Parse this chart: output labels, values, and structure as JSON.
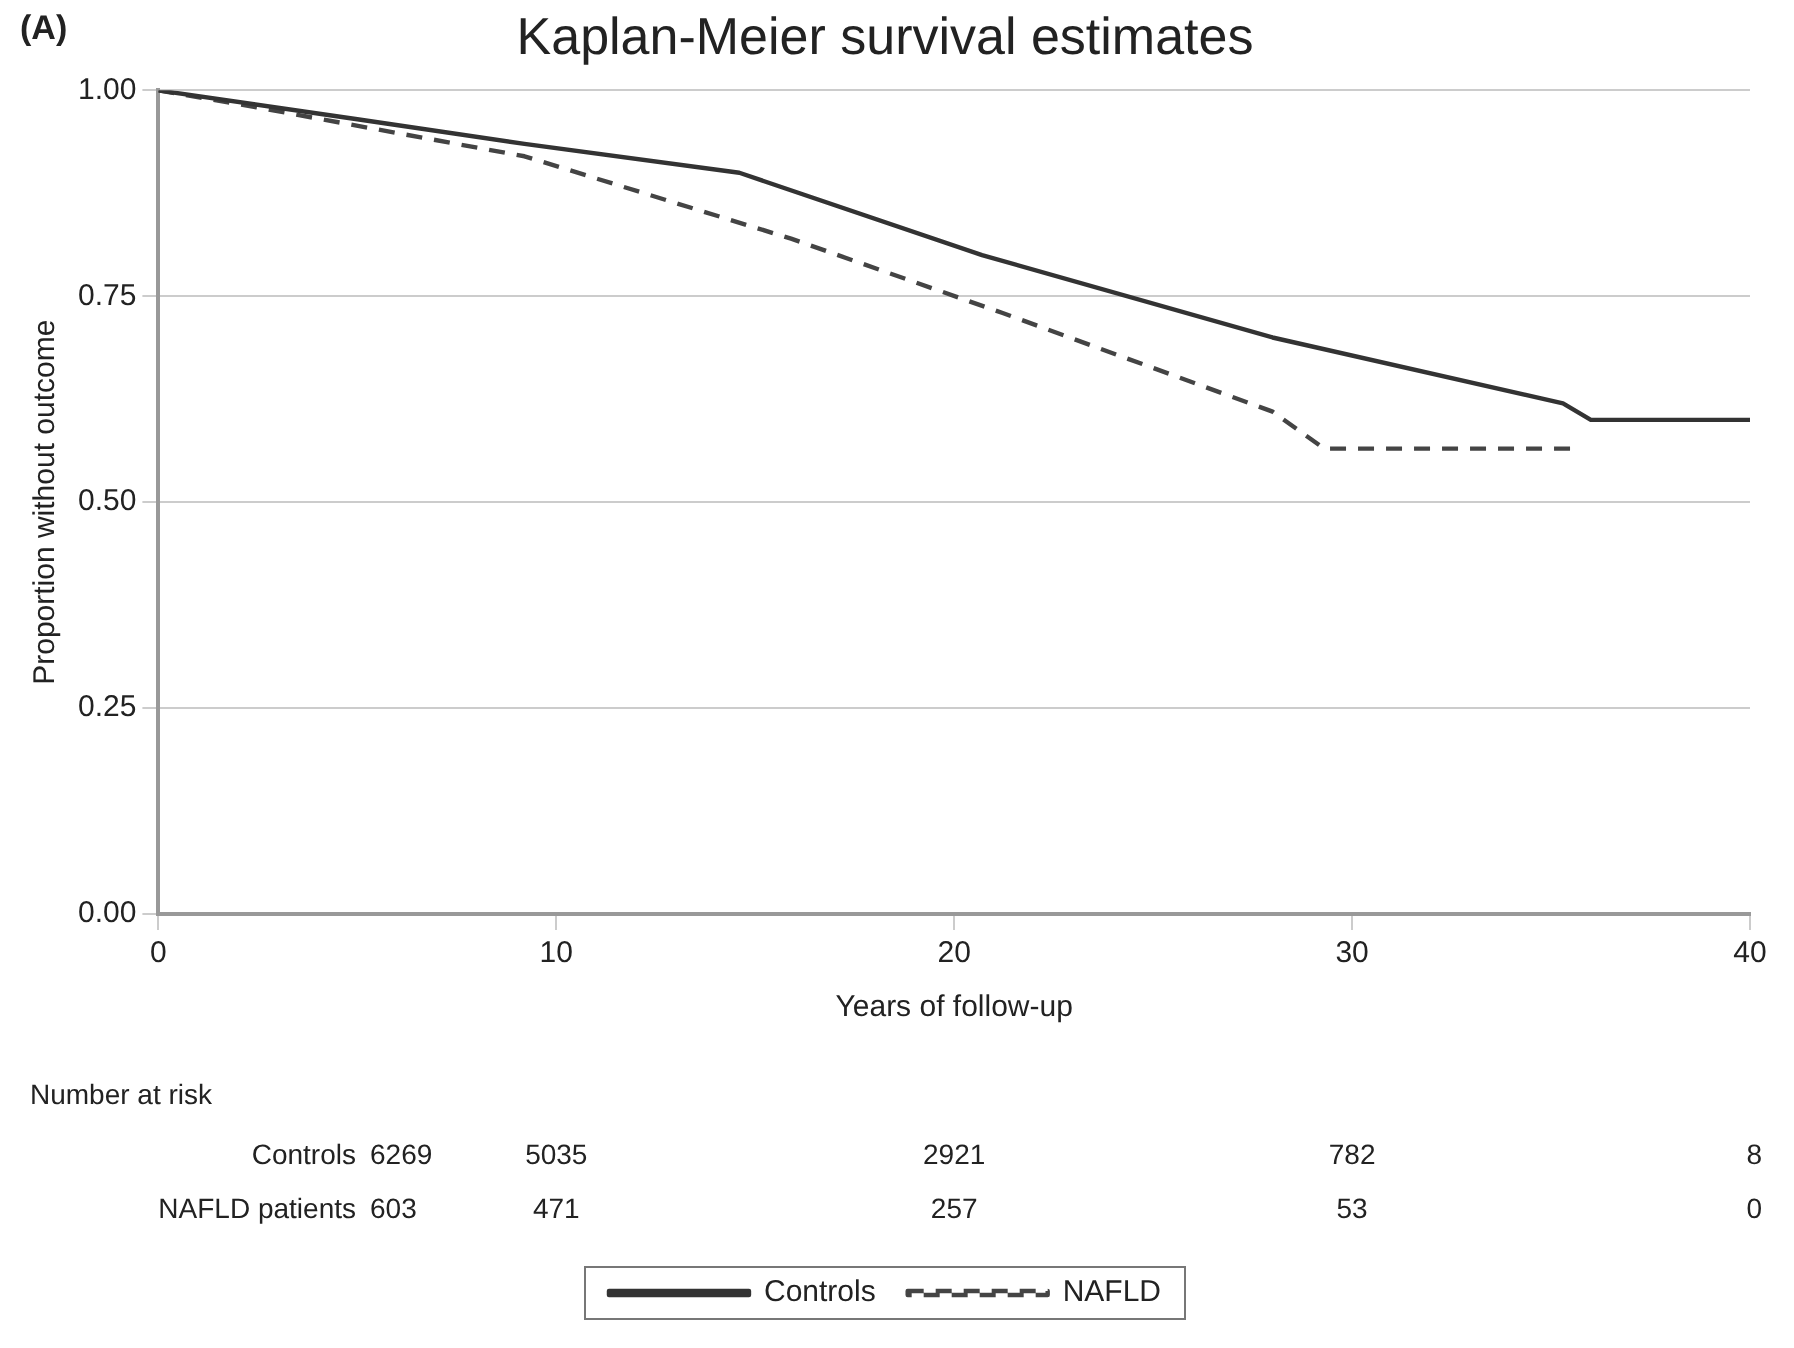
{
  "chart_data": {
    "type": "line",
    "title": "Kaplan-Meier survival estimates",
    "xlabel": "Years of follow-up",
    "ylabel": "Proportion without outcome",
    "xlim": [
      0,
      40
    ],
    "xticks": [
      0,
      10,
      20,
      30,
      40
    ],
    "ylim": [
      0,
      1
    ],
    "yticks": [
      {
        "value": 0,
        "label": "0.00"
      },
      {
        "value": 0.25,
        "label": "0.25"
      },
      {
        "value": 0.5,
        "label": "0.50"
      },
      {
        "value": 0.75,
        "label": "0.75"
      },
      {
        "value": 1,
        "label": "1.00"
      }
    ],
    "grid": "y",
    "legend": "bottom",
    "marker": "none",
    "series": [
      {
        "name": "Controls",
        "color": "#333333",
        "line_style": "solid",
        "x": [
          0,
          5,
          9.2,
          14.6,
          20.7,
          28,
          35.3,
          36,
          40
        ],
        "values": [
          1,
          0.965,
          0.935,
          0.9,
          0.8,
          0.7,
          0.62,
          0.6,
          0.6
        ]
      },
      {
        "name": "NAFLD",
        "color": "#444444",
        "line_style": "dashed",
        "x": [
          0,
          2.4,
          9.2,
          15.9,
          21.2,
          28,
          29.3,
          35.5
        ],
        "values": [
          1,
          0.98,
          0.92,
          0.82,
          0.73,
          0.61,
          0.565,
          0.565
        ]
      }
    ],
    "annotations": [
      "(A)",
      "Number at risk",
      "Controls",
      "6269",
      "5035",
      "2921",
      "782",
      "8",
      "NAFLD patients",
      "603",
      "471",
      "257",
      "53",
      "0"
    ]
  }
}
